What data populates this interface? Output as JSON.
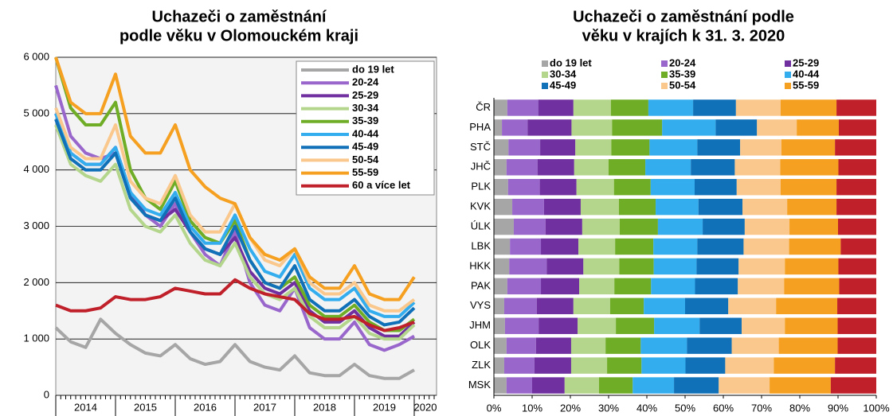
{
  "chart_data": [
    {
      "type": "line",
      "title": [
        "Uchazeči o zaměstnání",
        "podle věku v Olomouckém kraji"
      ],
      "categories": [
        null,
        null,
        null,
        null,
        null,
        null,
        null,
        null,
        null,
        null,
        null,
        null,
        null,
        null,
        null,
        null,
        null,
        null,
        null,
        null,
        null,
        null,
        null,
        null,
        null
      ],
      "year_labels": [
        "2014",
        "2015",
        "2016",
        "2017",
        "2018",
        "2019",
        "2020"
      ],
      "ylim": [
        0,
        6000
      ],
      "yticks": [
        {
          "value": 0,
          "label": "0"
        },
        {
          "value": 1000,
          "label": "1 000"
        },
        {
          "value": 2000,
          "label": "2 000"
        },
        {
          "value": 3000,
          "label": "3 000"
        },
        {
          "value": 4000,
          "label": "4 000"
        },
        {
          "value": 5000,
          "label": "5 000"
        },
        {
          "value": 6000,
          "label": "6 000"
        }
      ],
      "grid": true,
      "legend": "upper right",
      "series": [
        {
          "name": "do 19 let",
          "color": "#a6a6a6",
          "values": [
            1200,
            950,
            850,
            1350,
            1100,
            900,
            750,
            700,
            900,
            650,
            550,
            600,
            900,
            600,
            500,
            450,
            700,
            400,
            350,
            350,
            550,
            350,
            300,
            300,
            450
          ]
        },
        {
          "name": "20-24",
          "color": "#9966cc",
          "values": [
            5500,
            4600,
            4300,
            4200,
            4300,
            3600,
            3200,
            3000,
            3400,
            2900,
            2500,
            2300,
            2900,
            2000,
            1600,
            1500,
            1900,
            1200,
            1000,
            1000,
            1300,
            900,
            800,
            900,
            1050
          ]
        },
        {
          "name": "25-29",
          "color": "#7030a0",
          "values": [
            5000,
            4300,
            4100,
            4100,
            4400,
            3600,
            3200,
            3100,
            3300,
            2900,
            2600,
            2500,
            2800,
            2200,
            1900,
            1800,
            2000,
            1500,
            1300,
            1300,
            1500,
            1200,
            1050,
            1050,
            1300
          ]
        },
        {
          "name": "30-34",
          "color": "#b4d68c",
          "values": [
            4800,
            4100,
            3900,
            3800,
            4100,
            3300,
            3000,
            2900,
            3200,
            2700,
            2400,
            2300,
            2700,
            2100,
            1800,
            1700,
            1900,
            1400,
            1200,
            1200,
            1400,
            1100,
            1000,
            1000,
            1250
          ]
        },
        {
          "name": "35-39",
          "color": "#70ad27",
          "values": [
            6000,
            5100,
            4800,
            4800,
            5200,
            4000,
            3500,
            3300,
            3800,
            3100,
            2800,
            2700,
            3100,
            2400,
            2000,
            1900,
            2100,
            1600,
            1400,
            1400,
            1600,
            1300,
            1150,
            1150,
            1350
          ]
        },
        {
          "name": "40-44",
          "color": "#33adee",
          "values": [
            5000,
            4300,
            4100,
            4100,
            4400,
            3600,
            3300,
            3200,
            3600,
            3000,
            2700,
            2700,
            3200,
            2600,
            2200,
            2100,
            2500,
            1900,
            1700,
            1700,
            1900,
            1500,
            1400,
            1400,
            1650
          ]
        },
        {
          "name": "45-49",
          "color": "#1070b8",
          "values": [
            4900,
            4200,
            4000,
            4000,
            4300,
            3500,
            3200,
            3100,
            3500,
            2900,
            2600,
            2500,
            3000,
            2400,
            2000,
            1900,
            2300,
            1700,
            1500,
            1500,
            1700,
            1400,
            1250,
            1300,
            1550
          ]
        },
        {
          "name": "50-54",
          "color": "#fac88c",
          "values": [
            5100,
            4400,
            4200,
            4200,
            4800,
            3800,
            3500,
            3400,
            3900,
            3200,
            2900,
            2900,
            3400,
            2800,
            2400,
            2300,
            2600,
            2000,
            1800,
            1800,
            2000,
            1600,
            1500,
            1500,
            1700
          ]
        },
        {
          "name": "55-59",
          "color": "#f5a020",
          "values": [
            6000,
            5200,
            5000,
            5000,
            5700,
            4600,
            4300,
            4300,
            4800,
            4000,
            3700,
            3500,
            3400,
            2800,
            2500,
            2400,
            2600,
            2100,
            1900,
            1900,
            2300,
            1800,
            1700,
            1700,
            2100
          ]
        },
        {
          "name": "60 a více let",
          "color": "#c0202a",
          "values": [
            1600,
            1500,
            1500,
            1550,
            1750,
            1700,
            1700,
            1750,
            1900,
            1850,
            1800,
            1800,
            2050,
            1900,
            1800,
            1750,
            1700,
            1450,
            1350,
            1350,
            1400,
            1250,
            1150,
            1200,
            1300
          ]
        }
      ]
    },
    {
      "type": "stacked_barh",
      "title": [
        "Uchazeči o zaměstnání podle",
        "věku v krajích k 31. 3. 2020"
      ],
      "categories": [
        "ČR",
        "PHA",
        "STČ",
        "JHČ",
        "PLK",
        "KVK",
        "ÚLK",
        "LBK",
        "HKK",
        "PAK",
        "VYS",
        "JHM",
        "OLK",
        "ZLK",
        "MSK"
      ],
      "xlim": [
        0,
        100
      ],
      "xticks": [
        {
          "value": 0,
          "label": "0%"
        },
        {
          "value": 10,
          "label": "10%"
        },
        {
          "value": 20,
          "label": "20%"
        },
        {
          "value": 30,
          "label": "30%"
        },
        {
          "value": 40,
          "label": "40%"
        },
        {
          "value": 50,
          "label": "50%"
        },
        {
          "value": 60,
          "label": "60%"
        },
        {
          "value": 70,
          "label": "70%"
        },
        {
          "value": 80,
          "label": "80%"
        },
        {
          "value": 90,
          "label": "90%"
        },
        {
          "value": 100,
          "label": "100%"
        }
      ],
      "legend": "top",
      "series": [
        {
          "name": "do 19 let",
          "color": "#a6a6a6",
          "values": [
            3.5,
            2.1,
            3.8,
            3.3,
            3.7,
            4.8,
            5.2,
            4.2,
            4,
            3.5,
            2.7,
            2.9,
            3.3,
            2.7,
            3.3
          ]
        },
        {
          "name": "20-24",
          "color": "#9966cc",
          "values": [
            8.1,
            6.7,
            8.3,
            8.1,
            8.3,
            8.3,
            8.3,
            8.1,
            9.8,
            8.8,
            8.5,
            8.8,
            7.7,
            7.9,
            6.7
          ]
        },
        {
          "name": "25-29",
          "color": "#7030a0",
          "values": [
            9.2,
            11.5,
            9.2,
            9.6,
            9.6,
            9.6,
            9.6,
            9.8,
            9.6,
            10,
            9.6,
            10.2,
            9.2,
            9.6,
            8.5
          ]
        },
        {
          "name": "30-34",
          "color": "#b4d68c",
          "values": [
            9.8,
            10.6,
            9.4,
            9,
            9.8,
            10,
            9.8,
            9.6,
            9.4,
            9.2,
            9.6,
            10,
            9,
            9.4,
            9
          ]
        },
        {
          "name": "35-39",
          "color": "#70ad27",
          "values": [
            9.8,
            13.1,
            10,
            9.6,
            9.6,
            9.6,
            10,
            10,
            9,
            9.6,
            8.8,
            10,
            9.2,
            9,
            8.8
          ]
        },
        {
          "name": "40-44",
          "color": "#33adee",
          "values": [
            11.7,
            14,
            12.5,
            11.9,
            11.5,
            11.2,
            11.7,
            11.5,
            11.2,
            11.5,
            10.8,
            11.9,
            12.1,
            11.5,
            10.8
          ]
        },
        {
          "name": "45-49",
          "color": "#1070b8",
          "values": [
            11.2,
            10.8,
            11.2,
            11.5,
            11,
            11.5,
            11,
            12.1,
            11,
            11.2,
            11.3,
            11,
            11.7,
            10.4,
            11.7
          ]
        },
        {
          "name": "50-54",
          "color": "#fac88c",
          "values": [
            11.7,
            10.4,
            10.8,
            11.9,
            11.5,
            11.7,
            11.7,
            11.9,
            12.1,
            12.1,
            12.5,
            11.3,
            12.3,
            12.7,
            13.3
          ]
        },
        {
          "name": "55-59",
          "color": "#f5a020",
          "values": [
            14.6,
            11,
            14,
            15.2,
            14.6,
            12.9,
            12.7,
            13.5,
            14,
            14.4,
            16,
            13.8,
            15.4,
            16,
            16
          ]
        },
        {
          "color": "#c0202a",
          "values": [
            10.4,
            9.8,
            10.8,
            9.9,
            10.4,
            10.4,
            10,
            9.3,
            9.9,
            9.7,
            10.2,
            10.1,
            10.1,
            10.8,
            11.9
          ]
        }
      ]
    }
  ]
}
